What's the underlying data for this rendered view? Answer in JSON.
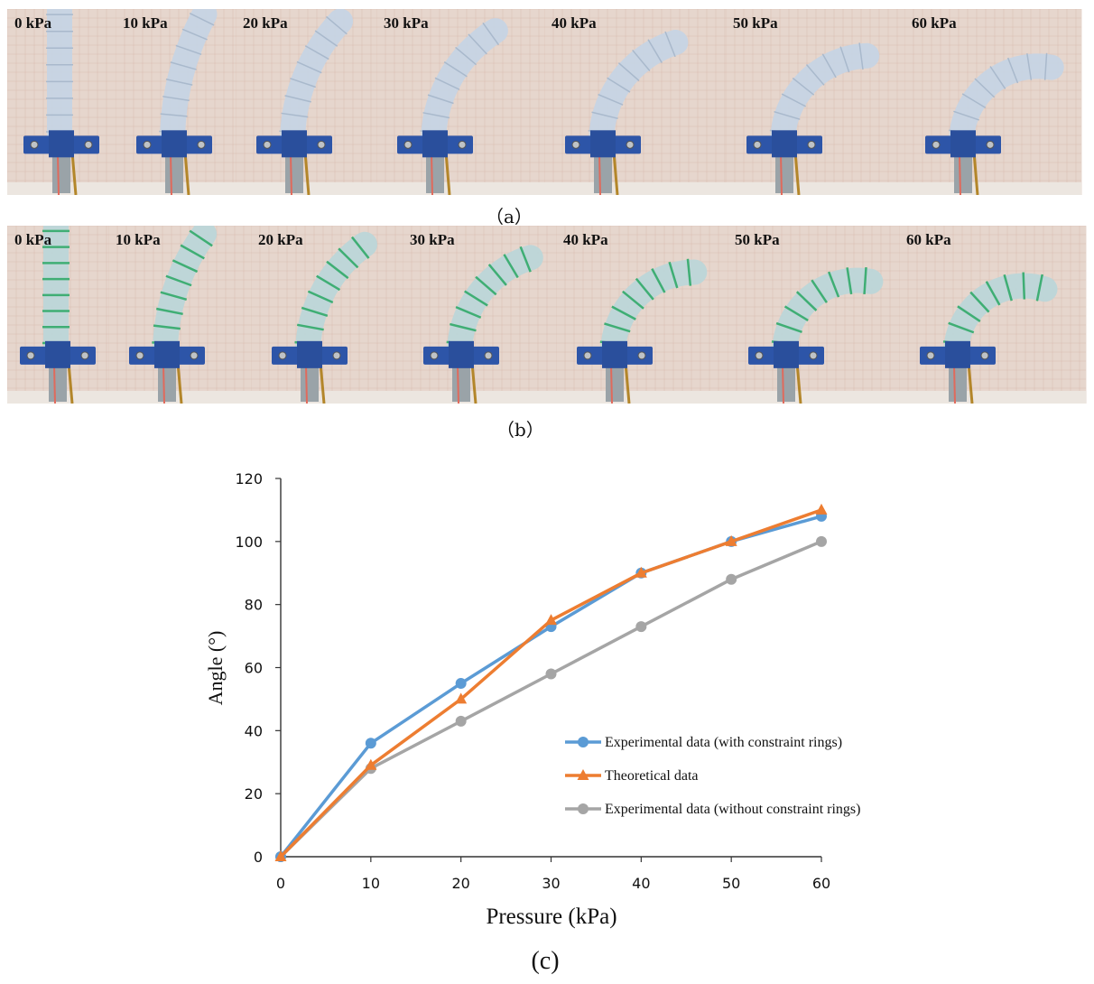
{
  "figure": {
    "caption_a": "（a）",
    "caption_b": "（b）",
    "caption_c": "(c)"
  },
  "row_a": {
    "panels": [
      {
        "label": "0 kPa",
        "bend_deg": 0
      },
      {
        "label": "10 kPa",
        "bend_deg": 28
      },
      {
        "label": "20 kPa",
        "bend_deg": 43
      },
      {
        "label": "30 kPa",
        "bend_deg": 58
      },
      {
        "label": "40 kPa",
        "bend_deg": 73
      },
      {
        "label": "50 kPa",
        "bend_deg": 88
      },
      {
        "label": "60 kPa",
        "bend_deg": 100
      }
    ],
    "colors": {
      "actuator": "#c6d4e4",
      "ring": "#c6d4e4"
    }
  },
  "row_b": {
    "panels": [
      {
        "label": "0 kPa",
        "bend_deg": 0
      },
      {
        "label": "10 kPa",
        "bend_deg": 36
      },
      {
        "label": "20 kPa",
        "bend_deg": 55
      },
      {
        "label": "30 kPa",
        "bend_deg": 73
      },
      {
        "label": "40 kPa",
        "bend_deg": 90
      },
      {
        "label": "50 kPa",
        "bend_deg": 100
      },
      {
        "label": "60 kPa",
        "bend_deg": 108
      }
    ],
    "colors": {
      "actuator": "#bcd6d8",
      "ring": "#3fae74"
    }
  },
  "chart_data": {
    "type": "line",
    "title": "",
    "xlabel": "Pressure (kPa)",
    "ylabel": "Angle (°)",
    "x": [
      0,
      10,
      20,
      30,
      40,
      50,
      60
    ],
    "xlim": [
      0,
      60
    ],
    "ylim": [
      0,
      120
    ],
    "xticks": [
      "0",
      "10",
      "20",
      "30",
      "40",
      "50",
      "60"
    ],
    "yticks": [
      "0",
      "20",
      "40",
      "60",
      "80",
      "100",
      "120"
    ],
    "grid": false,
    "legend_position": "center-right",
    "series": [
      {
        "name": "Experimental data (with constraint rings)",
        "values": [
          0,
          36,
          55,
          73,
          90,
          100,
          108
        ],
        "color": "#5b9bd5",
        "marker": "circle"
      },
      {
        "name": "Theoretical data",
        "values": [
          0,
          29,
          50,
          75,
          90,
          100,
          110
        ],
        "color": "#ed7d31",
        "marker": "triangle"
      },
      {
        "name": "Experimental data (without constraint rings)",
        "values": [
          0,
          28,
          43,
          58,
          73,
          88,
          100
        ],
        "color": "#a5a5a5",
        "marker": "circle"
      }
    ]
  }
}
